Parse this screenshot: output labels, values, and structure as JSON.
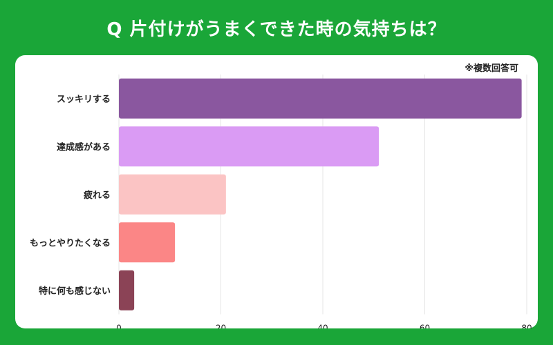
{
  "title": "Q 片付けがうまくできた時の気持ちは？",
  "note": "※複数回答可",
  "chart_data": {
    "type": "bar",
    "orientation": "horizontal",
    "categories": [
      "スッキリする",
      "達成感がある",
      "疲れる",
      "もっとやりたくなる",
      "特に何も感じない"
    ],
    "values": [
      79,
      51,
      21,
      11,
      3
    ],
    "colors": [
      "#8a579f",
      "#da9bf4",
      "#fbc4c4",
      "#fb8686",
      "#8b4356"
    ],
    "xlim": [
      0,
      80
    ],
    "xticks": [
      0,
      20,
      40,
      60,
      80
    ],
    "grid": true
  }
}
